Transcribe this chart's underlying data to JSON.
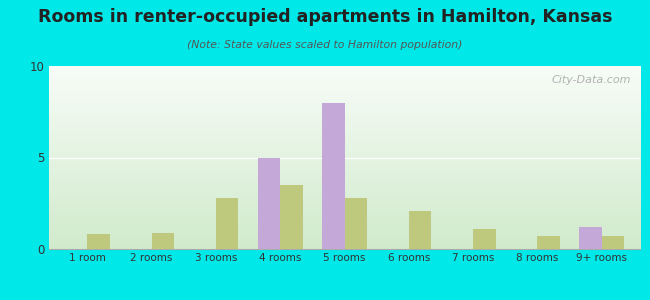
{
  "title": "Rooms in renter-occupied apartments in Hamilton, Kansas",
  "subtitle": "(Note: State values scaled to Hamilton population)",
  "categories": [
    "1 room",
    "2 rooms",
    "3 rooms",
    "4 rooms",
    "5 rooms",
    "6 rooms",
    "7 rooms",
    "8 rooms",
    "9+ rooms"
  ],
  "hamilton_values": [
    0,
    0,
    0,
    5.0,
    8.0,
    0,
    0,
    0,
    1.2
  ],
  "kansas_values": [
    0.8,
    0.9,
    2.8,
    3.5,
    2.8,
    2.1,
    1.1,
    0.7,
    0.7
  ],
  "hamilton_color": "#c4a8d8",
  "kansas_color": "#bec97e",
  "background_outer": "#00e8e8",
  "ylim": [
    0,
    10
  ],
  "yticks": [
    0,
    5,
    10
  ],
  "bar_width": 0.35,
  "watermark": "City-Data.com"
}
